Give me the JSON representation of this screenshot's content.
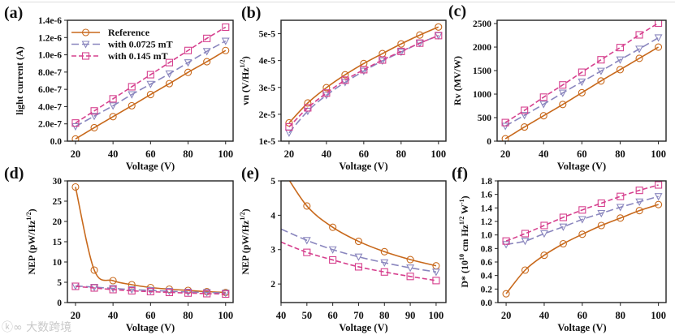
{
  "series_styles": [
    {
      "name": "Reference",
      "color": "#C8691C",
      "marker": "circle",
      "dash": ""
    },
    {
      "name": "with 0.0725 mT",
      "color": "#8A86BE",
      "marker": "triangle-down",
      "dash": "9,4"
    },
    {
      "name": "with 0.145 mT",
      "color": "#D6408E",
      "marker": "square",
      "dash": "6,3"
    }
  ],
  "watermark": "大数跨境",
  "chart_data": [
    {
      "id": "a",
      "panel_label": "(a)",
      "type": "line",
      "xlabel": "Voltage (V)",
      "ylabel": [
        {
          "t": "light current (A)"
        }
      ],
      "xlim": [
        15.7,
        104
      ],
      "ylim": [
        0,
        1.4e-06
      ],
      "xticks": [
        20,
        40,
        60,
        80,
        100
      ],
      "xtick_labels": [
        "20",
        "40",
        "60",
        "80",
        "100"
      ],
      "yticks": [
        0,
        2e-07,
        4e-07,
        6e-07,
        8e-07,
        1e-06,
        1.2e-06,
        1.4e-06
      ],
      "ytick_labels": [
        "0.0",
        "2.0e-7",
        "4.0e-7",
        "6.0e-7",
        "8.0e-7",
        "1.0e-6",
        "1.2e-6",
        "1.4e-6"
      ],
      "legend": "top-left",
      "grid": false,
      "x": [
        20,
        30,
        40,
        50,
        60,
        70,
        80,
        90,
        100
      ],
      "series": [
        {
          "name": "Reference",
          "values": [
            2.5e-08,
            1.56e-07,
            2.84e-07,
            4.1e-07,
            5.4e-07,
            6.66e-07,
            7.97e-07,
            9.2e-07,
            1.05e-06
          ]
        },
        {
          "name": "with 0.0725 mT",
          "values": [
            1.7e-07,
            2.9e-07,
            4.1e-07,
            5.4e-07,
            6.6e-07,
            7.8e-07,
            9.1e-07,
            1.04e-06,
            1.16e-06
          ]
        },
        {
          "name": "with 0.145 mT",
          "values": [
            2.1e-07,
            3.5e-07,
            4.9e-07,
            6.3e-07,
            7.7e-07,
            9.1e-07,
            1.05e-06,
            1.19e-06,
            1.32e-06
          ]
        }
      ]
    },
    {
      "id": "b",
      "panel_label": "(b)",
      "type": "line",
      "xlabel": "Voltage (V)",
      "ylabel": [
        {
          "t": "vn (V/Hz"
        },
        {
          "t": "1/2",
          "sup": true
        },
        {
          "t": ")"
        }
      ],
      "xlim": [
        15.7,
        104
      ],
      "ylim": [
        1e-05,
        5.5e-05
      ],
      "xticks": [
        20,
        40,
        60,
        80,
        100
      ],
      "xtick_labels": [
        "20",
        "40",
        "60",
        "80",
        "100"
      ],
      "yticks": [
        1e-05,
        2e-05,
        3e-05,
        4e-05,
        5e-05
      ],
      "ytick_labels": [
        "1e-5",
        "2e-5",
        "3e-5",
        "4e-5",
        "5e-5"
      ],
      "grid": false,
      "x": [
        20,
        30,
        40,
        50,
        60,
        70,
        80,
        90,
        100
      ],
      "series": [
        {
          "name": "Reference",
          "values": [
            1.68e-05,
            2.42e-05,
            2.99e-05,
            3.47e-05,
            3.89e-05,
            4.26e-05,
            4.62e-05,
            4.95e-05,
            5.25e-05
          ]
        },
        {
          "name": "with 0.0725 mT",
          "values": [
            1.31e-05,
            2.12e-05,
            2.71e-05,
            3.19e-05,
            3.61e-05,
            3.99e-05,
            4.32e-05,
            4.65e-05,
            4.93e-05
          ]
        },
        {
          "name": "with 0.145 mT",
          "values": [
            1.53e-05,
            2.24e-05,
            2.79e-05,
            3.27e-05,
            3.66e-05,
            4.02e-05,
            4.34e-05,
            4.65e-05,
            4.93e-05
          ]
        }
      ]
    },
    {
      "id": "c",
      "panel_label": "(c)",
      "type": "line",
      "xlabel": "Voltage (V)",
      "ylabel": [
        {
          "t": "Rv (MV/W)"
        }
      ],
      "xlim": [
        15.7,
        104
      ],
      "ylim": [
        0,
        2570
      ],
      "xticks": [
        20,
        40,
        60,
        80,
        100
      ],
      "xtick_labels": [
        "20",
        "40",
        "60",
        "80",
        "100"
      ],
      "yticks": [
        0,
        500,
        1000,
        1500,
        2000,
        2500
      ],
      "ytick_labels": [
        "0",
        "500",
        "1000",
        "1500",
        "2000",
        "2500"
      ],
      "grid": false,
      "x": [
        20,
        30,
        40,
        50,
        60,
        70,
        80,
        90,
        100
      ],
      "series": [
        {
          "name": "Reference",
          "values": [
            50,
            300,
            540,
            780,
            1030,
            1280,
            1520,
            1760,
            2000
          ]
        },
        {
          "name": "with 0.0725 mT",
          "values": [
            320,
            550,
            785,
            1025,
            1260,
            1490,
            1730,
            1960,
            2200
          ]
        },
        {
          "name": "with 0.145 mT",
          "values": [
            395,
            655,
            935,
            1195,
            1465,
            1730,
            1990,
            2260,
            2510
          ]
        }
      ]
    },
    {
      "id": "d",
      "panel_label": "(d)",
      "type": "line",
      "xlabel": "Voltage (V)",
      "ylabel": [
        {
          "t": "NEP (pW/Hz"
        },
        {
          "t": "1/2",
          "sup": true
        },
        {
          "t": ")"
        }
      ],
      "xlim": [
        15.7,
        104
      ],
      "ylim": [
        0,
        30
      ],
      "xticks": [
        20,
        40,
        60,
        80,
        100
      ],
      "xtick_labels": [
        "20",
        "40",
        "60",
        "80",
        "100"
      ],
      "yticks": [
        0,
        5,
        10,
        15,
        20,
        25,
        30
      ],
      "ytick_labels": [
        "0",
        "5",
        "10",
        "15",
        "20",
        "25",
        "30"
      ],
      "grid": false,
      "x": [
        20,
        30,
        40,
        50,
        60,
        70,
        80,
        90,
        100
      ],
      "series": [
        {
          "name": "Reference",
          "values": [
            28.5,
            8.0,
            5.4,
            4.4,
            3.7,
            3.3,
            3.0,
            2.7,
            2.5
          ]
        },
        {
          "name": "with 0.0725 mT",
          "values": [
            4.1,
            3.8,
            3.5,
            3.2,
            3.0,
            2.8,
            2.6,
            2.5,
            2.35
          ]
        },
        {
          "name": "with 0.145 mT",
          "values": [
            4.0,
            3.6,
            3.2,
            2.9,
            2.7,
            2.5,
            2.35,
            2.2,
            2.1
          ]
        }
      ]
    },
    {
      "id": "e",
      "panel_label": "(e)",
      "type": "line",
      "xlabel": "Voltage (V)",
      "ylabel": [
        {
          "t": "NEP (pW/Hz"
        },
        {
          "t": "1/2",
          "sup": true
        },
        {
          "t": ")"
        }
      ],
      "xlim": [
        40,
        103.8
      ],
      "ylim": [
        1.46,
        5
      ],
      "xticks": [
        40,
        50,
        60,
        70,
        80,
        90,
        100
      ],
      "xtick_labels": [
        "40",
        "50",
        "60",
        "70",
        "80",
        "90",
        "100"
      ],
      "yticks": [
        2,
        3,
        4,
        5
      ],
      "ytick_labels": [
        "2",
        "3",
        "4",
        "5"
      ],
      "grid": false,
      "x": [
        40,
        50,
        60,
        70,
        80,
        90,
        100
      ],
      "marker_from_index": 1,
      "series": [
        {
          "name": "Reference",
          "values": [
            5.4,
            4.27,
            3.65,
            3.24,
            2.94,
            2.71,
            2.53
          ]
        },
        {
          "name": "with 0.0725 mT",
          "values": [
            3.6,
            3.27,
            3.0,
            2.79,
            2.62,
            2.47,
            2.35
          ]
        },
        {
          "name": "with 0.145 mT",
          "values": [
            3.22,
            2.92,
            2.7,
            2.5,
            2.35,
            2.22,
            2.1
          ]
        }
      ]
    },
    {
      "id": "f",
      "panel_label": "(f)",
      "type": "line",
      "xlabel": "Voltage (V)",
      "ylabel": [
        {
          "t": "D* (10"
        },
        {
          "t": "10",
          "sup": true
        },
        {
          "t": " cm Hz"
        },
        {
          "t": "1/2",
          "sup": true
        },
        {
          "t": " W"
        },
        {
          "t": "-1",
          "sup": true
        },
        {
          "t": ")"
        }
      ],
      "xlim": [
        15.7,
        104
      ],
      "ylim": [
        0,
        1.8
      ],
      "xticks": [
        20,
        40,
        60,
        80,
        100
      ],
      "xtick_labels": [
        "20",
        "40",
        "60",
        "80",
        "100"
      ],
      "yticks": [
        0,
        0.2,
        0.4,
        0.6,
        0.8,
        1.0,
        1.2,
        1.4,
        1.6,
        1.8
      ],
      "ytick_labels": [
        "0.0",
        "0.2",
        "0.4",
        "0.6",
        "0.8",
        "1.0",
        "1.2",
        "1.4",
        "1.6",
        "1.8"
      ],
      "grid": false,
      "x": [
        20,
        30,
        40,
        50,
        60,
        70,
        80,
        90,
        100
      ],
      "series": [
        {
          "name": "Reference",
          "values": [
            0.13,
            0.48,
            0.7,
            0.87,
            1.01,
            1.14,
            1.25,
            1.36,
            1.45
          ]
        },
        {
          "name": "with 0.0725 mT",
          "values": [
            0.86,
            0.91,
            1.02,
            1.12,
            1.23,
            1.32,
            1.41,
            1.49,
            1.57
          ]
        },
        {
          "name": "with 0.145 mT",
          "values": [
            0.91,
            1.02,
            1.14,
            1.26,
            1.37,
            1.47,
            1.57,
            1.66,
            1.74
          ]
        }
      ]
    }
  ]
}
